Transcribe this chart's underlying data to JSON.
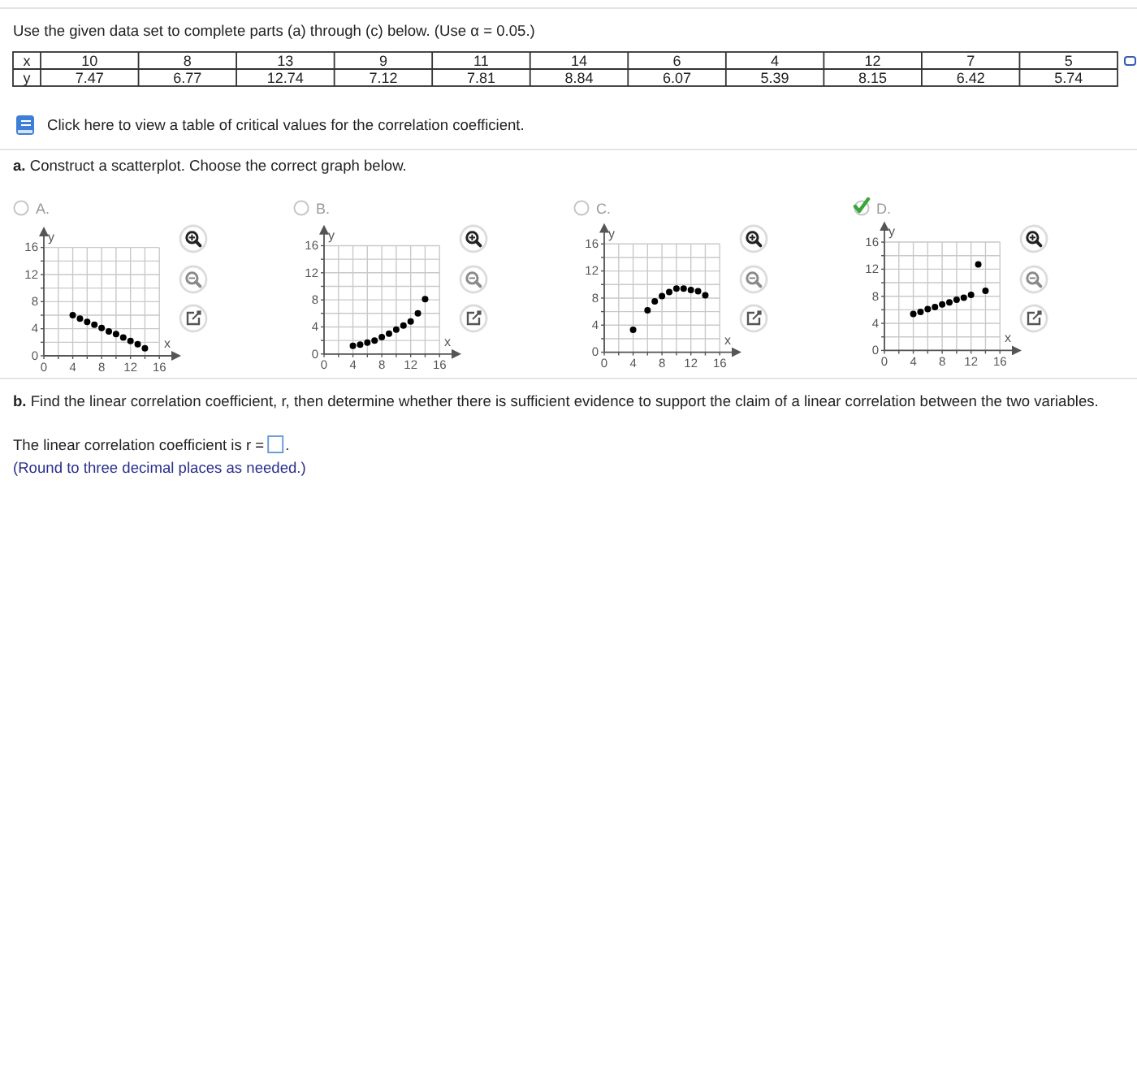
{
  "chart_data": [
    {
      "type": "other",
      "title": "Use the given data set to complete parts (a) through (c) below. (Use α = 0.05.)",
      "xlabel": "x",
      "ylabel": "y",
      "categories": [
        "10",
        "8",
        "13",
        "9",
        "11",
        "14",
        "6",
        "4",
        "12",
        "7",
        "5"
      ],
      "values": [
        7.47,
        6.77,
        12.74,
        7.12,
        7.81,
        8.84,
        6.07,
        5.39,
        8.15,
        6.42,
        5.74
      ],
      "data_labels": true,
      "annotations": [
        "Click here to view a table of critical values for the correlation coefficient.",
        "a. Construct a scatterplot. Choose the correct graph below."
      ]
    },
    {
      "type": "scatter",
      "title": "A.",
      "xlabel": "x",
      "ylabel": "y",
      "x": [
        4,
        5,
        6,
        7,
        8,
        9,
        10,
        11,
        12,
        13,
        14
      ],
      "values": [
        6,
        5.5,
        5,
        4.6,
        4.1,
        3.6,
        3.2,
        2.7,
        2.2,
        1.7,
        1.1
      ],
      "color": "#000000",
      "marker": "circle",
      "xlim": [
        0,
        18
      ],
      "ylim": [
        0,
        18
      ],
      "xticks": [
        0,
        {
          "value": 2,
          "label": null
        },
        4,
        {
          "value": 6,
          "label": null
        },
        8,
        {
          "value": 10,
          "label": null
        },
        12,
        {
          "value": 14,
          "label": null
        },
        16
      ],
      "yticks": [
        0,
        {
          "value": 2,
          "label": null
        },
        4,
        {
          "value": 6,
          "label": null
        },
        8,
        {
          "value": 10,
          "label": null
        },
        12,
        {
          "value": 14,
          "label": null
        },
        16
      ],
      "grid": true
    },
    {
      "type": "scatter",
      "title": "B.",
      "xlabel": "x",
      "ylabel": "y",
      "x": [
        4,
        5,
        6,
        7,
        8,
        9,
        10,
        11,
        12,
        13,
        14
      ],
      "values": [
        1.2,
        1.4,
        1.7,
        2,
        2.5,
        3,
        3.6,
        4.2,
        4.8,
        6,
        8.1
      ],
      "color": "#000000",
      "marker": "circle",
      "xlim": [
        0,
        18
      ],
      "ylim": [
        0,
        18
      ],
      "xticks": [
        0,
        {
          "value": 2,
          "label": null
        },
        4,
        {
          "value": 6,
          "label": null
        },
        8,
        {
          "value": 10,
          "label": null
        },
        12,
        {
          "value": 14,
          "label": null
        },
        16
      ],
      "yticks": [
        0,
        {
          "value": 2,
          "label": null
        },
        4,
        {
          "value": 6,
          "label": null
        },
        8,
        {
          "value": 10,
          "label": null
        },
        12,
        {
          "value": 14,
          "label": null
        },
        16
      ],
      "grid": true
    },
    {
      "type": "scatter",
      "title": "C.",
      "xlabel": "x",
      "ylabel": "y",
      "x": [
        4,
        6,
        7,
        8,
        9,
        10,
        11,
        12,
        13,
        14
      ],
      "values": [
        3.3,
        6.2,
        7.5,
        8.3,
        8.9,
        9.4,
        9.4,
        9.2,
        9,
        8.4
      ],
      "color": "#000000",
      "marker": "circle",
      "xlim": [
        0,
        18
      ],
      "ylim": [
        0,
        18
      ],
      "xticks": [
        0,
        {
          "value": 2,
          "label": null
        },
        4,
        {
          "value": 6,
          "label": null
        },
        8,
        {
          "value": 10,
          "label": null
        },
        12,
        {
          "value": 14,
          "label": null
        },
        16
      ],
      "yticks": [
        0,
        {
          "value": 2,
          "label": null
        },
        4,
        {
          "value": 6,
          "label": null
        },
        8,
        {
          "value": 10,
          "label": null
        },
        12,
        {
          "value": 14,
          "label": null
        },
        16
      ],
      "grid": true
    },
    {
      "type": "scatter",
      "title": "D.",
      "xlabel": "x",
      "ylabel": "y",
      "x": [
        10,
        8,
        13,
        9,
        11,
        14,
        6,
        4,
        12,
        7,
        5
      ],
      "values": [
        7.5,
        6.8,
        12.7,
        7.1,
        7.8,
        8.8,
        6.1,
        5.4,
        8.2,
        6.4,
        5.7
      ],
      "color": "#000000",
      "marker": "circle",
      "xlim": [
        0,
        18
      ],
      "ylim": [
        0,
        18
      ],
      "xticks": [
        0,
        {
          "value": 2,
          "label": null
        },
        4,
        {
          "value": 6,
          "label": null
        },
        8,
        {
          "value": 10,
          "label": null
        },
        12,
        {
          "value": 14,
          "label": null
        },
        16
      ],
      "yticks": [
        0,
        {
          "value": 2,
          "label": null
        },
        4,
        {
          "value": 6,
          "label": null
        },
        8,
        {
          "value": 10,
          "label": null
        },
        12,
        {
          "value": 14,
          "label": null
        },
        16
      ],
      "grid": true
    },
    {
      "type": "other",
      "title": "b. Find the linear correlation coefficient, r, then determine whether there is sufficient evidence to support the claim of a linear correlation between the two variables.",
      "annotations": [
        "The linear correlation coefficient is r =",
        ".",
        "(Round to three decimal places as needed.)"
      ]
    }
  ]
}
